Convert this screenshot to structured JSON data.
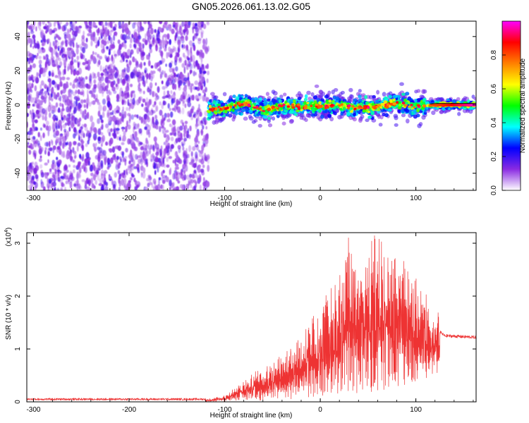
{
  "figure_title": "GN05.2026.061.13.02.G05",
  "chart_data": [
    {
      "type": "heatmap",
      "title": "GN05.2026.061.13.02.G05",
      "xlabel": "Height of straight line (km)",
      "ylabel": "Frequency (Hz)",
      "xlim": [
        -307,
        163
      ],
      "ylim": [
        -50,
        49
      ],
      "xticks": [
        -300,
        -200,
        -100,
        0,
        100
      ],
      "xtick_labels": [
        "-300",
        "-200",
        "-100",
        "0",
        "100"
      ],
      "yticks": [
        -40,
        -20,
        0,
        20,
        40
      ],
      "ytick_labels": [
        "-40",
        "-20",
        "0",
        "20",
        "40"
      ],
      "noise_region_x": [
        -307,
        -117
      ],
      "signal_region_x": [
        -117,
        163
      ],
      "colorbar": {
        "label": "Normalized spectral amplitude",
        "range": [
          0,
          1
        ],
        "ticks": [
          0.0,
          0.2,
          0.4,
          0.6,
          0.8
        ],
        "tick_labels": [
          "0.0",
          "0.2",
          "0.4",
          "0.6",
          "0.8"
        ],
        "colors": [
          "#ffffff",
          "#8a2be2",
          "#0000ff",
          "#00ffff",
          "#00ff00",
          "#ffff00",
          "#ff8000",
          "#ff0000",
          "#ff00ff"
        ]
      },
      "ridge": {
        "x": [
          -117,
          -100,
          -80,
          -60,
          -40,
          -20,
          0,
          20,
          40,
          60,
          80,
          100,
          120,
          140,
          163
        ],
        "y": [
          -3,
          -2,
          1,
          -3,
          -1,
          -1,
          -1,
          0,
          -2,
          -1,
          1,
          -1,
          0,
          0,
          0
        ]
      }
    },
    {
      "type": "line",
      "xlabel": "Height of straight line (km)",
      "ylabel": "SNR (10 * v/v)",
      "y_multiplier": "(x10",
      "y_multiplier_exp": "4",
      "y_multiplier_close": ")",
      "xlim": [
        -307,
        163
      ],
      "ylim": [
        0,
        3.2
      ],
      "xticks": [
        -300,
        -200,
        -100,
        0,
        100
      ],
      "xtick_labels": [
        "-300",
        "-200",
        "-100",
        "0",
        "100"
      ],
      "yticks": [
        0,
        1,
        2,
        3
      ],
      "ytick_labels": [
        "0",
        "1",
        "2",
        "3"
      ],
      "series": [
        {
          "name": "SNR",
          "color": "#ee3333",
          "envelope_x": [
            -307,
            -120,
            -100,
            -80,
            -60,
            -40,
            -20,
            0,
            20,
            30,
            40,
            60,
            80,
            100,
            120,
            130,
            163
          ],
          "envelope_y": [
            0.05,
            0.05,
            0.12,
            0.4,
            0.65,
            0.9,
            1.3,
            1.75,
            2.4,
            3.1,
            2.7,
            3.1,
            2.6,
            2.0,
            1.4,
            1.25,
            1.22
          ]
        }
      ]
    }
  ]
}
